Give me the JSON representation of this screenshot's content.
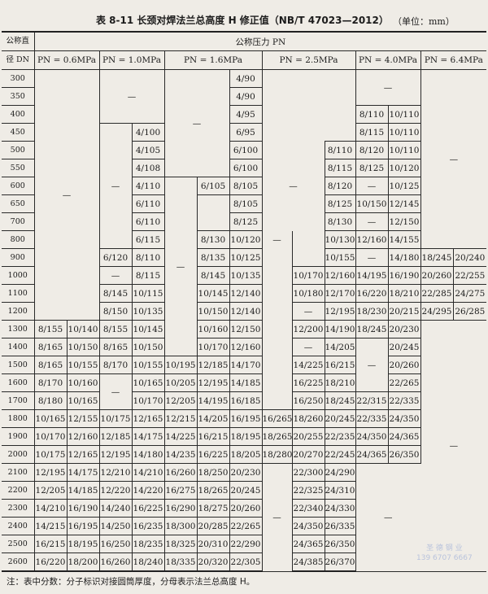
{
  "title": {
    "text": "表 8-11  长颈对焊法兰总高度 H 修正值（NB/T 47023—2012）",
    "unit": "（单位：mm）"
  },
  "header": {
    "dn_line1": "公称直",
    "dn_line2": "径 DN",
    "pressure_group": "公称压力 PN",
    "pn": [
      "PN = 0.6MPa",
      "PN = 1.0MPa",
      "PN = 1.6MPa",
      "PN = 2.5MPa",
      "PN = 4.0MPa",
      "PN = 6.4MPa"
    ]
  },
  "table": {
    "rows": [
      {
        "dn": "300",
        "cells": [
          "—",
          null,
          "—",
          null,
          "—",
          null,
          "4/90",
          "",
          null,
          null,
          "—",
          null,
          "—",
          null
        ]
      },
      {
        "dn": "350",
        "cells": [
          null,
          null,
          null,
          null,
          null,
          null,
          "4/90",
          null,
          null,
          null,
          null,
          null,
          null,
          null
        ]
      },
      {
        "dn": "400",
        "cells": [
          null,
          null,
          null,
          null,
          null,
          null,
          "4/95",
          null,
          null,
          null,
          "8/110",
          "10/110",
          null,
          null
        ]
      },
      {
        "dn": "450",
        "cells": [
          null,
          null,
          "—",
          "4/100",
          null,
          null,
          "6/95",
          null,
          null,
          null,
          "8/115",
          "10/110",
          null,
          null
        ]
      },
      {
        "dn": "500",
        "cells": [
          null,
          null,
          null,
          "4/105",
          null,
          null,
          "6/100",
          "—",
          null,
          "8/110",
          "8/120",
          "10/110",
          null,
          null
        ]
      },
      {
        "dn": "550",
        "cells": [
          null,
          null,
          null,
          "4/108",
          null,
          null,
          "6/100",
          null,
          null,
          "8/115",
          "8/125",
          "10/120",
          null,
          null
        ]
      },
      {
        "dn": "600",
        "cells": [
          null,
          null,
          null,
          "4/110",
          "—",
          "6/105",
          "8/105",
          null,
          null,
          "8/120",
          "—",
          "10/125",
          null,
          null
        ]
      },
      {
        "dn": "650",
        "cells": [
          null,
          null,
          null,
          "6/110",
          null,
          "",
          "8/105",
          null,
          null,
          "8/125",
          "10/150",
          "12/145",
          null,
          null
        ]
      },
      {
        "dn": "700",
        "cells": [
          null,
          null,
          null,
          "6/110",
          null,
          null,
          "8/125",
          null,
          null,
          "8/130",
          "—",
          "12/150",
          null,
          null
        ]
      },
      {
        "dn": "800",
        "cells": [
          null,
          null,
          null,
          "6/115",
          null,
          "8/130",
          "10/120",
          "—",
          "",
          "10/130",
          "12/160",
          "14/155",
          null,
          null
        ]
      },
      {
        "dn": "900",
        "cells": [
          null,
          null,
          "6/120",
          "8/110",
          null,
          "8/135",
          "10/125",
          "",
          null,
          "10/155",
          "—",
          "14/180",
          "18/245",
          "20/240"
        ]
      },
      {
        "dn": "1000",
        "cells": [
          null,
          null,
          "—",
          "8/115",
          null,
          "8/145",
          "10/135",
          null,
          "10/170",
          "12/160",
          "14/195",
          "16/190",
          "20/260",
          "22/255"
        ]
      },
      {
        "dn": "1100",
        "cells": [
          null,
          null,
          "8/145",
          "10/115",
          null,
          "10/145",
          "12/140",
          null,
          "10/180",
          "12/170",
          "16/220",
          "18/210",
          "22/285",
          "24/275"
        ]
      },
      {
        "dn": "1200",
        "cells": [
          null,
          null,
          "8/150",
          "10/135",
          null,
          "10/150",
          "12/140",
          null,
          "—",
          "12/195",
          "18/230",
          "20/215",
          "24/295",
          "26/285"
        ]
      },
      {
        "dn": "1300",
        "cells": [
          "8/155",
          "10/140",
          "8/155",
          "10/145",
          null,
          "10/160",
          "12/150",
          null,
          "12/200",
          "14/190",
          "18/245",
          "20/230",
          "—",
          null
        ]
      },
      {
        "dn": "1400",
        "cells": [
          "8/165",
          "10/150",
          "8/165",
          "10/150",
          null,
          "10/170",
          "12/160",
          null,
          "—",
          "14/205",
          "—",
          "20/245",
          null,
          null
        ]
      },
      {
        "dn": "1500",
        "cells": [
          "8/165",
          "10/155",
          "8/170",
          "10/155",
          "10/195",
          "12/185",
          "14/170",
          null,
          "14/225",
          "16/215",
          null,
          "20/260",
          null,
          null
        ]
      },
      {
        "dn": "1600",
        "cells": [
          "8/170",
          "10/160",
          "—",
          "10/165",
          "10/205",
          "12/195",
          "14/185",
          null,
          "16/225",
          "18/210",
          null,
          "22/265",
          null,
          null
        ]
      },
      {
        "dn": "1700",
        "cells": [
          "8/180",
          "10/165",
          null,
          "10/170",
          "12/205",
          "14/195",
          "16/185",
          null,
          "16/250",
          "18/245",
          "22/315",
          "22/335",
          null,
          null
        ]
      },
      {
        "dn": "1800",
        "cells": [
          "10/165",
          "12/155",
          "10/175",
          "12/165",
          "12/215",
          "14/205",
          "16/195",
          "16/265",
          "18/260",
          "20/245",
          "22/335",
          "24/350",
          null,
          null
        ]
      },
      {
        "dn": "1900",
        "cells": [
          "10/170",
          "12/160",
          "12/185",
          "14/175",
          "14/225",
          "16/215",
          "18/195",
          "18/265",
          "20/255",
          "22/235",
          "24/350",
          "24/365",
          null,
          null
        ]
      },
      {
        "dn": "2000",
        "cells": [
          "10/175",
          "12/165",
          "12/195",
          "14/180",
          "14/235",
          "16/225",
          "18/205",
          "18/280",
          "20/270",
          "22/245",
          "24/365",
          "26/350",
          null,
          null
        ]
      },
      {
        "dn": "2100",
        "cells": [
          "12/195",
          "14/175",
          "12/210",
          "14/210",
          "16/260",
          "18/250",
          "20/230",
          "—",
          "22/300",
          "24/290",
          "—",
          null,
          null,
          null
        ]
      },
      {
        "dn": "2200",
        "cells": [
          "12/205",
          "14/185",
          "12/220",
          "14/220",
          "16/275",
          "18/265",
          "20/245",
          null,
          "22/325",
          "24/310",
          null,
          null,
          null,
          null
        ]
      },
      {
        "dn": "2300",
        "cells": [
          "14/210",
          "16/190",
          "14/240",
          "16/225",
          "16/290",
          "18/275",
          "20/260",
          null,
          "22/340",
          "24/330",
          null,
          null,
          null,
          null
        ]
      },
      {
        "dn": "2400",
        "cells": [
          "14/215",
          "16/195",
          "14/250",
          "16/235",
          "18/300",
          "20/285",
          "22/265",
          null,
          "24/350",
          "26/335",
          null,
          null,
          null,
          null
        ]
      },
      {
        "dn": "2500",
        "cells": [
          "16/215",
          "18/195",
          "16/250",
          "18/235",
          "18/325",
          "20/310",
          "22/290",
          null,
          "24/365",
          "26/350",
          null,
          null,
          null,
          null
        ]
      },
      {
        "dn": "2600",
        "cells": [
          "16/220",
          "18/200",
          "16/260",
          "18/240",
          "18/335",
          "20/320",
          "22/305",
          null,
          "24/385",
          "26/370",
          null,
          null,
          null,
          null
        ]
      }
    ]
  },
  "note": "注：表中分数：分子标识对接圆筒厚度，分母表示法兰总高度 H。",
  "watermark": {
    "line1": "圣 德 钢 业",
    "line2": "139 6707 6667"
  }
}
